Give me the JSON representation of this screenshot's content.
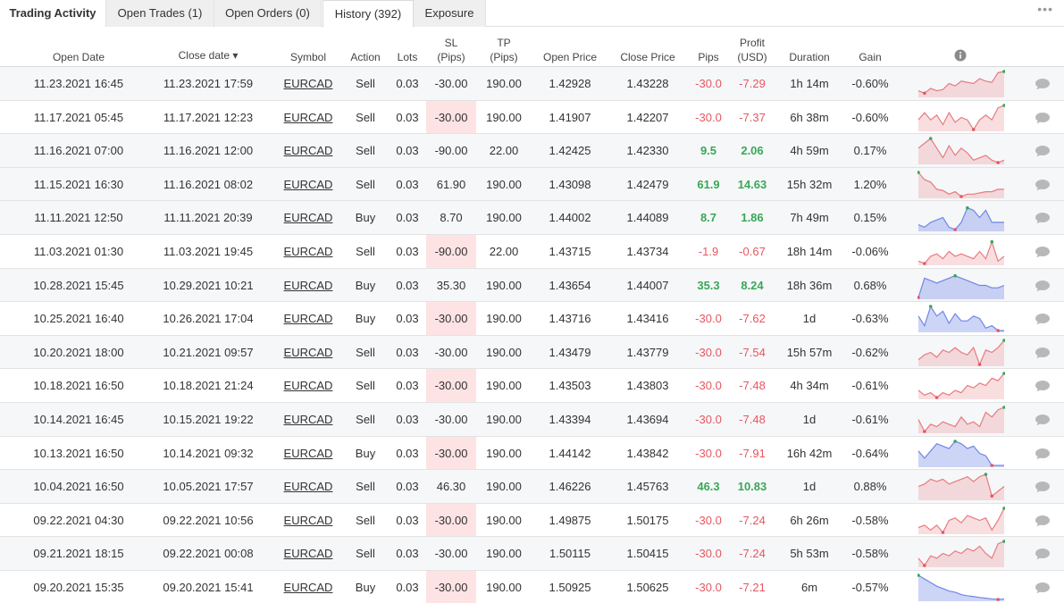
{
  "tabs": [
    {
      "label": "Trading Activity"
    },
    {
      "label": "Open Trades (1)"
    },
    {
      "label": "Open Orders (0)"
    },
    {
      "label": "History (392)"
    },
    {
      "label": "Exposure"
    }
  ],
  "more_label": "•••",
  "columns": {
    "open_date": "Open Date",
    "close_date": "Close date ▾",
    "symbol": "Symbol",
    "action": "Action",
    "lots": "Lots",
    "sl_1": "SL",
    "sl_2": "(Pips)",
    "tp_1": "TP",
    "tp_2": "(Pips)",
    "open_price": "Open Price",
    "close_price": "Close Price",
    "pips": "Pips",
    "profit_1": "Profit",
    "profit_2": "(USD)",
    "duration": "Duration",
    "gain": "Gain"
  },
  "colors": {
    "loss": "#e8565f",
    "win": "#3aa757",
    "sl_band": "#fde3e4",
    "sell_spark": "#e87a80",
    "buy_spark": "#6f86e8"
  },
  "rows": [
    {
      "open": "11.23.2021 16:45",
      "close": "11.23.2021 17:59",
      "symbol": "EURCAD",
      "action": "Sell",
      "lots": "0.03",
      "sl": "-30.00",
      "tp": "190.00",
      "open_price": "1.42928",
      "close_price": "1.43228",
      "pips": "-30.0",
      "profit": "-7.29",
      "duration": "1h 14m",
      "gain": "-0.60%",
      "spark": [
        0.2,
        0.1,
        0.3,
        0.2,
        0.25,
        0.5,
        0.4,
        0.6,
        0.55,
        0.5,
        0.7,
        0.6,
        0.55,
        0.95,
        1.0
      ],
      "win": false
    },
    {
      "open": "11.17.2021 05:45",
      "close": "11.17.2021 12:23",
      "symbol": "EURCAD",
      "action": "Sell",
      "lots": "0.03",
      "sl": "-30.00",
      "tp": "190.00",
      "open_price": "1.41907",
      "close_price": "1.42207",
      "pips": "-30.0",
      "profit": "-7.37",
      "duration": "6h 38m",
      "gain": "-0.60%",
      "spark": [
        0.4,
        0.7,
        0.4,
        0.6,
        0.2,
        0.7,
        0.3,
        0.5,
        0.4,
        0.0,
        0.4,
        0.6,
        0.4,
        0.9,
        1.0
      ],
      "win": false
    },
    {
      "open": "11.16.2021 07:00",
      "close": "11.16.2021 12:00",
      "symbol": "EURCAD",
      "action": "Sell",
      "lots": "0.03",
      "sl": "-90.00",
      "tp": "22.00",
      "open_price": "1.42425",
      "close_price": "1.42330",
      "pips": "9.5",
      "profit": "2.06",
      "duration": "4h 59m",
      "gain": "0.17%",
      "spark": [
        0.6,
        0.8,
        1.0,
        0.6,
        0.2,
        0.7,
        0.3,
        0.6,
        0.4,
        0.1,
        0.2,
        0.3,
        0.1,
        0.0,
        0.1
      ],
      "win": true
    },
    {
      "open": "11.15.2021 16:30",
      "close": "11.16.2021 08:02",
      "symbol": "EURCAD",
      "action": "Sell",
      "lots": "0.03",
      "sl": "61.90",
      "tp": "190.00",
      "open_price": "1.43098",
      "close_price": "1.42479",
      "pips": "61.9",
      "profit": "14.63",
      "duration": "15h 32m",
      "gain": "1.20%",
      "spark": [
        1.0,
        0.7,
        0.6,
        0.3,
        0.25,
        0.1,
        0.2,
        0.0,
        0.1,
        0.1,
        0.15,
        0.2,
        0.2,
        0.3,
        0.3
      ],
      "win": true
    },
    {
      "open": "11.11.2021 12:50",
      "close": "11.11.2021 20:39",
      "symbol": "EURCAD",
      "action": "Buy",
      "lots": "0.03",
      "sl": "8.70",
      "tp": "190.00",
      "open_price": "1.44002",
      "close_price": "1.44089",
      "pips": "8.7",
      "profit": "1.86",
      "duration": "7h 49m",
      "gain": "0.15%",
      "spark": [
        0.2,
        0.1,
        0.3,
        0.4,
        0.5,
        0.1,
        0.0,
        0.3,
        0.9,
        0.8,
        0.5,
        0.8,
        0.3,
        0.3,
        0.3
      ],
      "win": true
    },
    {
      "open": "11.03.2021 01:30",
      "close": "11.03.2021 19:45",
      "symbol": "EURCAD",
      "action": "Sell",
      "lots": "0.03",
      "sl": "-90.00",
      "tp": "22.00",
      "open_price": "1.43715",
      "close_price": "1.43734",
      "pips": "-1.9",
      "profit": "-0.67",
      "duration": "18h 14m",
      "gain": "-0.06%",
      "spark": [
        0.1,
        0.0,
        0.3,
        0.4,
        0.2,
        0.5,
        0.3,
        0.4,
        0.3,
        0.2,
        0.5,
        0.2,
        0.9,
        0.1,
        0.3
      ],
      "win": false
    },
    {
      "open": "10.28.2021 15:45",
      "close": "10.29.2021 10:21",
      "symbol": "EURCAD",
      "action": "Buy",
      "lots": "0.03",
      "sl": "35.30",
      "tp": "190.00",
      "open_price": "1.43654",
      "close_price": "1.44007",
      "pips": "35.3",
      "profit": "8.24",
      "duration": "18h 36m",
      "gain": "0.68%",
      "spark": [
        0.0,
        0.8,
        0.7,
        0.6,
        0.7,
        0.8,
        0.9,
        0.8,
        0.7,
        0.6,
        0.5,
        0.5,
        0.4,
        0.4,
        0.5
      ],
      "win": true
    },
    {
      "open": "10.25.2021 16:40",
      "close": "10.26.2021 17:04",
      "symbol": "EURCAD",
      "action": "Buy",
      "lots": "0.03",
      "sl": "-30.00",
      "tp": "190.00",
      "open_price": "1.43716",
      "close_price": "1.43416",
      "pips": "-30.0",
      "profit": "-7.62",
      "duration": "1d",
      "gain": "-0.63%",
      "spark": [
        0.6,
        0.2,
        1.0,
        0.6,
        0.8,
        0.3,
        0.7,
        0.4,
        0.4,
        0.6,
        0.5,
        0.1,
        0.2,
        0.0,
        0.0
      ],
      "win": false
    },
    {
      "open": "10.20.2021 18:00",
      "close": "10.21.2021 09:57",
      "symbol": "EURCAD",
      "action": "Sell",
      "lots": "0.03",
      "sl": "-30.00",
      "tp": "190.00",
      "open_price": "1.43479",
      "close_price": "1.43779",
      "pips": "-30.0",
      "profit": "-7.54",
      "duration": "15h 57m",
      "gain": "-0.62%",
      "spark": [
        0.2,
        0.4,
        0.5,
        0.3,
        0.6,
        0.5,
        0.7,
        0.5,
        0.4,
        0.7,
        0.0,
        0.6,
        0.5,
        0.7,
        1.0
      ],
      "win": false
    },
    {
      "open": "10.18.2021 16:50",
      "close": "10.18.2021 21:24",
      "symbol": "EURCAD",
      "action": "Sell",
      "lots": "0.03",
      "sl": "-30.00",
      "tp": "190.00",
      "open_price": "1.43503",
      "close_price": "1.43803",
      "pips": "-30.0",
      "profit": "-7.48",
      "duration": "4h 34m",
      "gain": "-0.61%",
      "spark": [
        0.3,
        0.1,
        0.2,
        0.0,
        0.2,
        0.1,
        0.3,
        0.2,
        0.5,
        0.4,
        0.6,
        0.5,
        0.8,
        0.7,
        1.0
      ],
      "win": false
    },
    {
      "open": "10.14.2021 16:45",
      "close": "10.15.2021 19:22",
      "symbol": "EURCAD",
      "action": "Sell",
      "lots": "0.03",
      "sl": "-30.00",
      "tp": "190.00",
      "open_price": "1.43394",
      "close_price": "1.43694",
      "pips": "-30.0",
      "profit": "-7.48",
      "duration": "1d",
      "gain": "-0.61%",
      "spark": [
        0.5,
        0.0,
        0.3,
        0.2,
        0.4,
        0.3,
        0.2,
        0.6,
        0.3,
        0.4,
        0.2,
        0.8,
        0.6,
        0.9,
        1.0
      ],
      "win": false
    },
    {
      "open": "10.13.2021 16:50",
      "close": "10.14.2021 09:32",
      "symbol": "EURCAD",
      "action": "Buy",
      "lots": "0.03",
      "sl": "-30.00",
      "tp": "190.00",
      "open_price": "1.44142",
      "close_price": "1.43842",
      "pips": "-30.0",
      "profit": "-7.91",
      "duration": "16h 42m",
      "gain": "-0.64%",
      "spark": [
        0.6,
        0.3,
        0.6,
        0.9,
        0.8,
        0.7,
        1.0,
        0.9,
        0.7,
        0.8,
        0.5,
        0.4,
        0.0,
        0.0,
        0.0
      ],
      "win": false
    },
    {
      "open": "10.04.2021 16:50",
      "close": "10.05.2021 17:57",
      "symbol": "EURCAD",
      "action": "Sell",
      "lots": "0.03",
      "sl": "46.30",
      "tp": "190.00",
      "open_price": "1.46226",
      "close_price": "1.45763",
      "pips": "46.3",
      "profit": "10.83",
      "duration": "1d",
      "gain": "0.88%",
      "spark": [
        0.5,
        0.6,
        0.8,
        0.7,
        0.8,
        0.6,
        0.7,
        0.8,
        0.9,
        0.7,
        0.9,
        1.0,
        0.1,
        0.3,
        0.5
      ],
      "win": true
    },
    {
      "open": "09.22.2021 04:30",
      "close": "09.22.2021 10:56",
      "symbol": "EURCAD",
      "action": "Sell",
      "lots": "0.03",
      "sl": "-30.00",
      "tp": "190.00",
      "open_price": "1.49875",
      "close_price": "1.50175",
      "pips": "-30.0",
      "profit": "-7.24",
      "duration": "6h 26m",
      "gain": "-0.58%",
      "spark": [
        0.2,
        0.3,
        0.1,
        0.3,
        0.0,
        0.5,
        0.6,
        0.4,
        0.7,
        0.6,
        0.5,
        0.6,
        0.1,
        0.5,
        1.0
      ],
      "win": false
    },
    {
      "open": "09.21.2021 18:15",
      "close": "09.22.2021 00:08",
      "symbol": "EURCAD",
      "action": "Sell",
      "lots": "0.03",
      "sl": "-30.00",
      "tp": "190.00",
      "open_price": "1.50115",
      "close_price": "1.50415",
      "pips": "-30.0",
      "profit": "-7.24",
      "duration": "5h 53m",
      "gain": "-0.58%",
      "spark": [
        0.3,
        0.0,
        0.4,
        0.3,
        0.5,
        0.4,
        0.6,
        0.5,
        0.7,
        0.6,
        0.8,
        0.5,
        0.3,
        0.9,
        1.0
      ],
      "win": false
    },
    {
      "open": "09.20.2021 15:35",
      "close": "09.20.2021 15:41",
      "symbol": "EURCAD",
      "action": "Buy",
      "lots": "0.03",
      "sl": "-30.00",
      "tp": "190.00",
      "open_price": "1.50925",
      "close_price": "1.50625",
      "pips": "-30.0",
      "profit": "-7.21",
      "duration": "6m",
      "gain": "-0.57%",
      "spark": [
        1.0,
        0.85,
        0.7,
        0.55,
        0.45,
        0.35,
        0.3,
        0.2,
        0.15,
        0.12,
        0.08,
        0.05,
        0.02,
        0.0,
        0.02
      ],
      "win": false
    }
  ]
}
